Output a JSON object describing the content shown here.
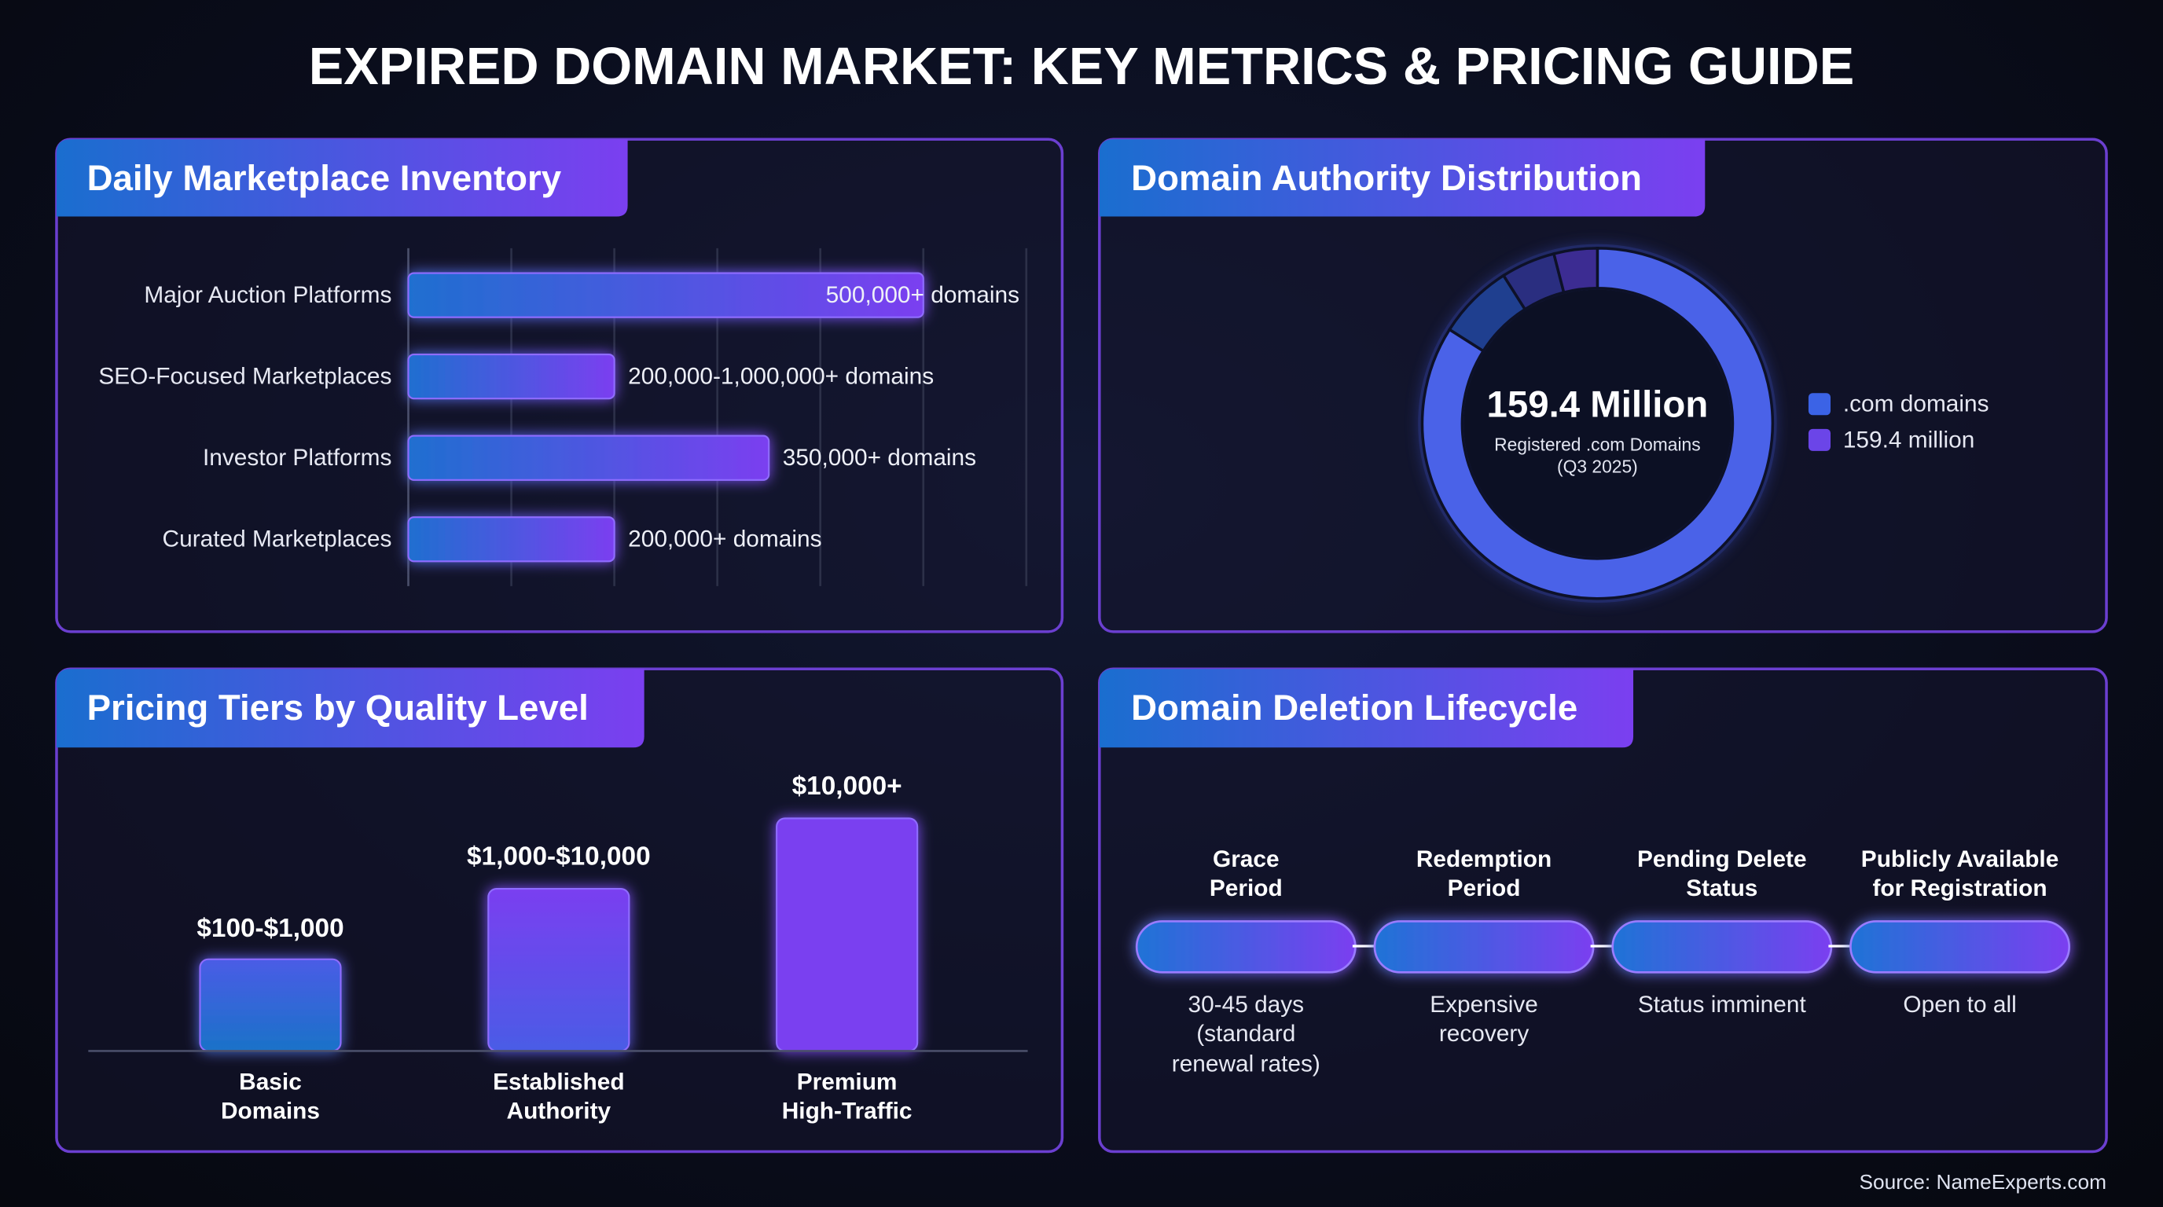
{
  "title": "EXPIRED DOMAIN MARKET: KEY METRICS & PRICING GUIDE",
  "source": "Source: NameExperts.com",
  "chart_data": [
    {
      "type": "hbar",
      "title": "Daily Marketplace Inventory",
      "categories": [
        "Major Auction Platforms",
        "SEO-Focused Marketplaces",
        "Investor Platforms",
        "Curated Marketplaces"
      ],
      "values": [
        500000,
        200000,
        350000,
        200000
      ],
      "value_labels": [
        "500,000+ domains",
        "200,000-1,000,000+ domains",
        "350,000+ domains",
        "200,000+ domains"
      ],
      "xlim": [
        0,
        600000
      ],
      "xticks": [
        0,
        100000,
        200000,
        300000,
        400000,
        500000,
        600000
      ],
      "grid": true,
      "colors": [
        "#1f6fd0",
        "#7b3ff0"
      ]
    },
    {
      "type": "donut",
      "title": "Domain Authority Distribution",
      "values": [
        84,
        7,
        5,
        4
      ],
      "colors": [
        "#4a62e8",
        "#1f3f8f",
        "#2a2e80",
        "#3c2c92"
      ],
      "center_value": "159.4 Million",
      "center_label": "Registered .com Domains\n(Q3 2025)",
      "legend": [
        {
          "label": ".com domains",
          "color": "#3b63e6"
        },
        {
          "label": "159.4 million",
          "color": "#6b45e8"
        }
      ]
    },
    {
      "type": "bar",
      "title": "Pricing Tiers by Quality Level",
      "categories": [
        "Basic\nDomains",
        "Established\nAuthority",
        "Premium\nHigh-Traffic"
      ],
      "values": [
        100,
        1000,
        10000
      ],
      "value_labels": [
        "$100-$1,000",
        "$1,000-$10,000",
        "$10,000+"
      ],
      "colors": [
        "#1a72c8",
        "#4a5ce6",
        "#7a3ff0"
      ],
      "ylim": [
        5,
        20000
      ],
      "log": true
    }
  ],
  "lifecycle": {
    "title": "Domain Deletion Lifecycle",
    "steps": [
      {
        "title": "Grace\nPeriod",
        "description": "30-45 days\n(standard\nrenewal rates)"
      },
      {
        "title": "Redemption\nPeriod",
        "description": "Expensive\nrecovery"
      },
      {
        "title": "Pending Delete\nStatus",
        "description": "Status imminent"
      },
      {
        "title": "Publicly Available\nfor Registration",
        "description": "Open to all"
      }
    ]
  }
}
